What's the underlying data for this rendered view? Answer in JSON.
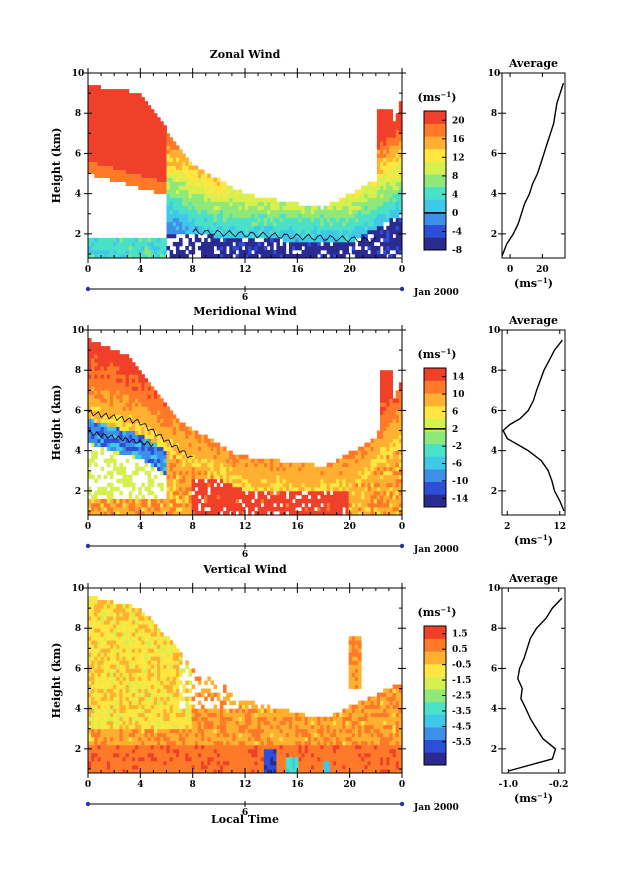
{
  "chart_data": [
    {
      "type": "heatmap",
      "title": "Zonal Wind",
      "ylabel": "Height (km)",
      "ylim": [
        0.8,
        10
      ],
      "y_ticks": [
        "2",
        "4",
        "6",
        "8",
        "10"
      ],
      "xlim": [
        0,
        24
      ],
      "x_ticks": [
        "0",
        "4",
        "8",
        "12",
        "16",
        "20",
        "0"
      ],
      "date_axis": {
        "day": "6",
        "label": "Jan 2000"
      },
      "colorbar": {
        "unit": "(ms⁻¹)",
        "range": [
          -8,
          22
        ],
        "ticks": [
          "20",
          "16",
          "12",
          "8",
          "4",
          "0",
          "-4",
          "-8"
        ],
        "zero_contour": 0,
        "colors": [
          "#2a2a90",
          "#2d4fd8",
          "#3f8fe8",
          "#3fc8e8",
          "#4be0c8",
          "#8ee87a",
          "#d6f050",
          "#ffe640",
          "#ffb030",
          "#ff7a28",
          "#f0402a"
        ]
      },
      "average_profile": {
        "title": "Average",
        "unit": "(ms⁻¹)",
        "x_ticks": [
          "0",
          "20"
        ],
        "xlim": [
          -5,
          34
        ],
        "height": [
          0.9,
          1.5,
          2.0,
          2.5,
          3.0,
          3.5,
          4.0,
          4.5,
          5.0,
          5.5,
          6.0,
          6.5,
          7.0,
          7.5,
          8.0,
          8.5,
          9.0,
          9.5
        ],
        "value": [
          -5,
          -2,
          2,
          5,
          7,
          9,
          12,
          14,
          17,
          19,
          21,
          23,
          25,
          27,
          28,
          29,
          31,
          33
        ]
      }
    },
    {
      "type": "heatmap",
      "title": "Meridional Wind",
      "ylabel": "Height (km)",
      "ylim": [
        0.8,
        10
      ],
      "y_ticks": [
        "2",
        "4",
        "6",
        "8",
        "10"
      ],
      "xlim": [
        0,
        24
      ],
      "x_ticks": [
        "0",
        "4",
        "8",
        "12",
        "16",
        "20",
        "0"
      ],
      "date_axis": {
        "day": "6",
        "label": "Jan 2000"
      },
      "colorbar": {
        "unit": "(ms⁻¹)",
        "range": [
          -16,
          16
        ],
        "ticks": [
          "14",
          "10",
          "6",
          "2",
          "-2",
          "-6",
          "-10",
          "-14"
        ],
        "zero_contour": 2,
        "colors": [
          "#2a2a90",
          "#2d4fd8",
          "#3f8fe8",
          "#3fc8e8",
          "#4be0c8",
          "#8ee87a",
          "#d6f050",
          "#ffe640",
          "#ffb030",
          "#ff7a28",
          "#f0402a"
        ]
      },
      "average_profile": {
        "title": "Average",
        "unit": "(ms⁻¹)",
        "x_ticks": [
          "2",
          "12"
        ],
        "xlim": [
          1,
          13
        ],
        "height": [
          1.0,
          1.5,
          2.0,
          2.5,
          3.0,
          3.5,
          4.0,
          4.3,
          4.6,
          5.0,
          5.3,
          5.6,
          6.0,
          6.5,
          7.0,
          7.5,
          8.0,
          8.5,
          9.0,
          9.5
        ],
        "value": [
          12.8,
          12,
          11,
          10.5,
          9.8,
          8.5,
          6,
          4,
          2,
          1.2,
          2.5,
          4.5,
          6,
          7,
          7.6,
          8.3,
          9,
          10,
          11,
          12.5
        ]
      }
    },
    {
      "type": "heatmap",
      "title": "Vertical Wind",
      "xlabel": "Local Time",
      "ylabel": "Height (km)",
      "ylim": [
        0.8,
        10
      ],
      "y_ticks": [
        "2",
        "4",
        "6",
        "8",
        "10"
      ],
      "xlim": [
        0,
        24
      ],
      "x_ticks": [
        "0",
        "4",
        "8",
        "12",
        "16",
        "20",
        "0"
      ],
      "date_axis": {
        "day": "6",
        "label": "Jan 2000"
      },
      "colorbar": {
        "unit": "(ms⁻¹)",
        "range": [
          -7,
          2
        ],
        "ticks": [
          "1.5",
          "0.5",
          "-0.5",
          "-1.5",
          "-2.5",
          "-3.5",
          "-4.5",
          "-5.5"
        ],
        "colors": [
          "#2a2a90",
          "#2d4fd8",
          "#3f8fe8",
          "#3fc8e8",
          "#4be0c8",
          "#8ee87a",
          "#d6f050",
          "#ffe640",
          "#ffb030",
          "#ff7a28",
          "#f0402a"
        ]
      },
      "average_profile": {
        "title": "Average",
        "unit": "(ms⁻¹)",
        "x_ticks": [
          "-1.0",
          "-0.2"
        ],
        "xlim": [
          -1.1,
          -0.1
        ],
        "height": [
          0.9,
          1.5,
          2.0,
          2.5,
          3.0,
          3.5,
          4.0,
          4.5,
          5.0,
          5.5,
          6.0,
          6.5,
          7.0,
          7.5,
          8.0,
          8.5,
          9.0,
          9.5
        ],
        "value": [
          -1.0,
          -0.3,
          -0.25,
          -0.45,
          -0.55,
          -0.65,
          -0.72,
          -0.8,
          -0.78,
          -0.85,
          -0.82,
          -0.75,
          -0.7,
          -0.65,
          -0.55,
          -0.4,
          -0.3,
          -0.15
        ]
      }
    }
  ]
}
